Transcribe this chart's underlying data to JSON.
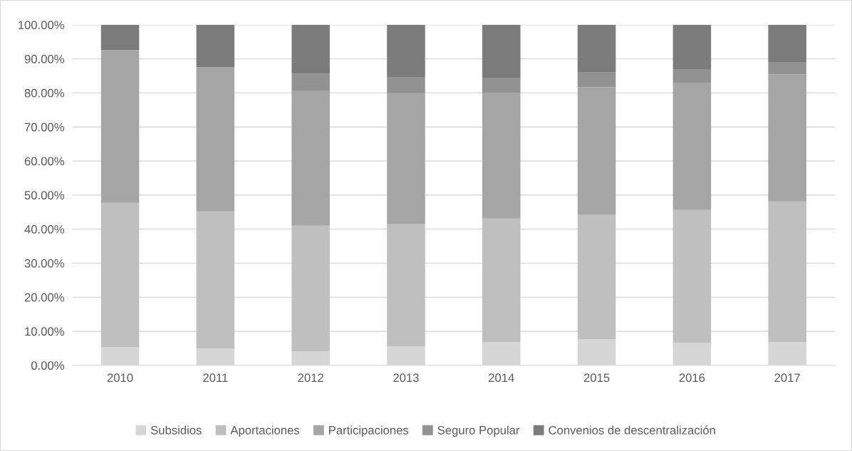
{
  "chart_data": {
    "type": "bar",
    "stacked": true,
    "categories": [
      "2010",
      "2011",
      "2012",
      "2013",
      "2014",
      "2015",
      "2016",
      "2017"
    ],
    "series": [
      {
        "name": "Subsidios",
        "color": "#d6d6d6",
        "values": [
          5.3,
          4.9,
          4.1,
          5.6,
          6.8,
          7.7,
          6.6,
          6.8
        ]
      },
      {
        "name": "Aportaciones",
        "color": "#bfbfbf",
        "values": [
          42.4,
          40.3,
          36.9,
          36.0,
          36.3,
          36.6,
          39.0,
          41.3
        ]
      },
      {
        "name": "Participaciones",
        "color": "#a5a5a5",
        "values": [
          44.9,
          42.3,
          39.7,
          38.2,
          37.0,
          37.4,
          37.4,
          37.3
        ]
      },
      {
        "name": "Seguro Popular",
        "color": "#929292",
        "values": [
          null,
          null,
          5.0,
          4.9,
          4.4,
          4.3,
          4.0,
          3.7
        ]
      },
      {
        "name": "Convenios de descentralización",
        "color": "#7b7b7b",
        "values": [
          7.4,
          12.5,
          14.3,
          15.3,
          15.5,
          14.0,
          13.0,
          10.9
        ]
      }
    ],
    "ylim": [
      0,
      100
    ],
    "yticks": [
      {
        "value": 0,
        "label": "0.00%"
      },
      {
        "value": 10,
        "label": "10.00%"
      },
      {
        "value": 20,
        "label": "20.00%"
      },
      {
        "value": 30,
        "label": "30.00%"
      },
      {
        "value": 40,
        "label": "40.00%"
      },
      {
        "value": 50,
        "label": "50.00%"
      },
      {
        "value": 60,
        "label": "60.00%"
      },
      {
        "value": 70,
        "label": "70.00%"
      },
      {
        "value": 80,
        "label": "80.00%"
      },
      {
        "value": 90,
        "label": "90.00%"
      },
      {
        "value": 100,
        "label": "100.00%"
      }
    ],
    "grid": "y",
    "legend": "bottom"
  }
}
